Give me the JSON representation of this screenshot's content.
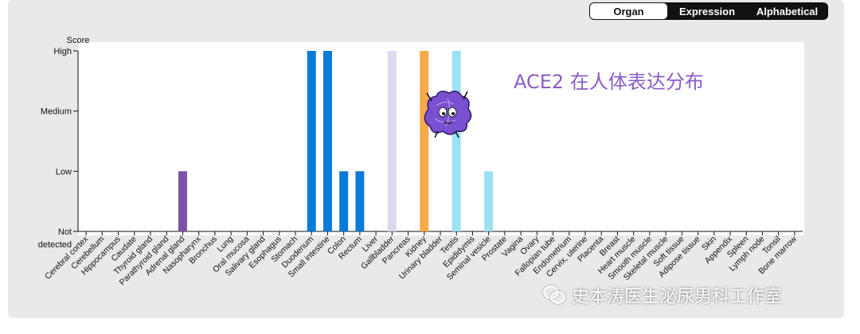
{
  "toggle": {
    "options": [
      {
        "label": "Organ",
        "active": true
      },
      {
        "label": "Expression",
        "active": false
      },
      {
        "label": "Alphabetical",
        "active": false
      }
    ]
  },
  "annotation": "ACE2 在人体表达分布",
  "watermark": "史本涛医生泌尿男科工作室",
  "chart_data": {
    "type": "bar",
    "ylabel": "Score",
    "y_levels": [
      "Not detected",
      "Low",
      "Medium",
      "High"
    ],
    "ylim": [
      0,
      3
    ],
    "grid": false,
    "categories": [
      "Cerebral cortex",
      "Cerebellum",
      "Hippocampus",
      "Caudate",
      "Thyroid gland",
      "Parathyroid gland",
      "Adrenal gland",
      "Nasopharynx",
      "Bronchus",
      "Lung",
      "Oral mucosa",
      "Salivary gland",
      "Esophagus",
      "Stomach",
      "Duodenum",
      "Small intestine",
      "Colon",
      "Rectum",
      "Liver",
      "Gallbladder",
      "Pancreas",
      "Kidney",
      "Urinary bladder",
      "Testis",
      "Epididymis",
      "Seminal vesicle",
      "Prostate",
      "Vagina",
      "Ovary",
      "Fallopian tube",
      "Endometrium",
      "Cervix, uterine",
      "Placenta",
      "Breast",
      "Heart muscle",
      "Smooth muscle",
      "Skeletal muscle",
      "Soft tissue",
      "Adipose tissue",
      "Skin",
      "Appendix",
      "Spleen",
      "Lymph node",
      "Tonsil",
      "Bone marrow"
    ],
    "values": [
      0,
      0,
      0,
      0,
      0,
      0,
      1,
      0,
      0,
      0,
      0,
      0,
      0,
      0,
      3,
      3,
      1,
      1,
      0,
      3,
      0,
      3,
      0,
      3,
      0,
      1,
      0,
      0,
      0,
      0,
      0,
      0,
      0,
      0,
      0,
      0,
      0,
      0,
      0,
      0,
      0,
      0,
      0,
      0,
      0
    ],
    "colors": [
      "#7b52a6",
      "#0a7bd7",
      "#0a7bd7",
      "#0a7bd7",
      "#0a7bd7",
      "#ddd8ef",
      "#f7a94b",
      "#9be1f2",
      "#9be1f2"
    ]
  }
}
